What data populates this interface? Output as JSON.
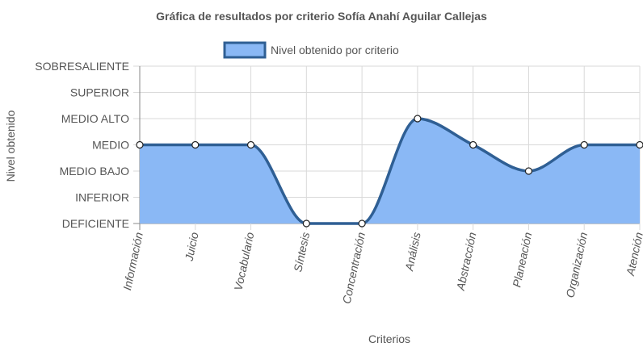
{
  "chart_data": {
    "type": "area",
    "title": "Gráfica de resultados por criterio Sofía Anahí Aguilar Callejas",
    "xlabel": "Criterios",
    "ylabel": "Nivel obtenido",
    "categories": [
      "Información",
      "Juicio",
      "Vocabulario",
      "Síntesis",
      "Concentración",
      "Análisis",
      "Abstracción",
      "Planeación",
      "Organización",
      "Atención"
    ],
    "y_levels": [
      "DEFICIENTE",
      "INFERIOR",
      "MEDIO BAJO",
      "MEDIO",
      "MEDIO ALTO",
      "SUPERIOR",
      "SOBRESALIENTE"
    ],
    "series": [
      {
        "name": "Nivel obtenido por criterio",
        "values": [
          3,
          3,
          3,
          0,
          0,
          4,
          3,
          2,
          3,
          3
        ]
      }
    ],
    "ylim": [
      0,
      6
    ],
    "grid": true,
    "legend_position": "top",
    "colors": {
      "fill": "#8ab8f5",
      "line": "#2f5f94",
      "point_fill": "#ffffff",
      "grid": "#d9d9d9",
      "axis": "#888888"
    }
  }
}
